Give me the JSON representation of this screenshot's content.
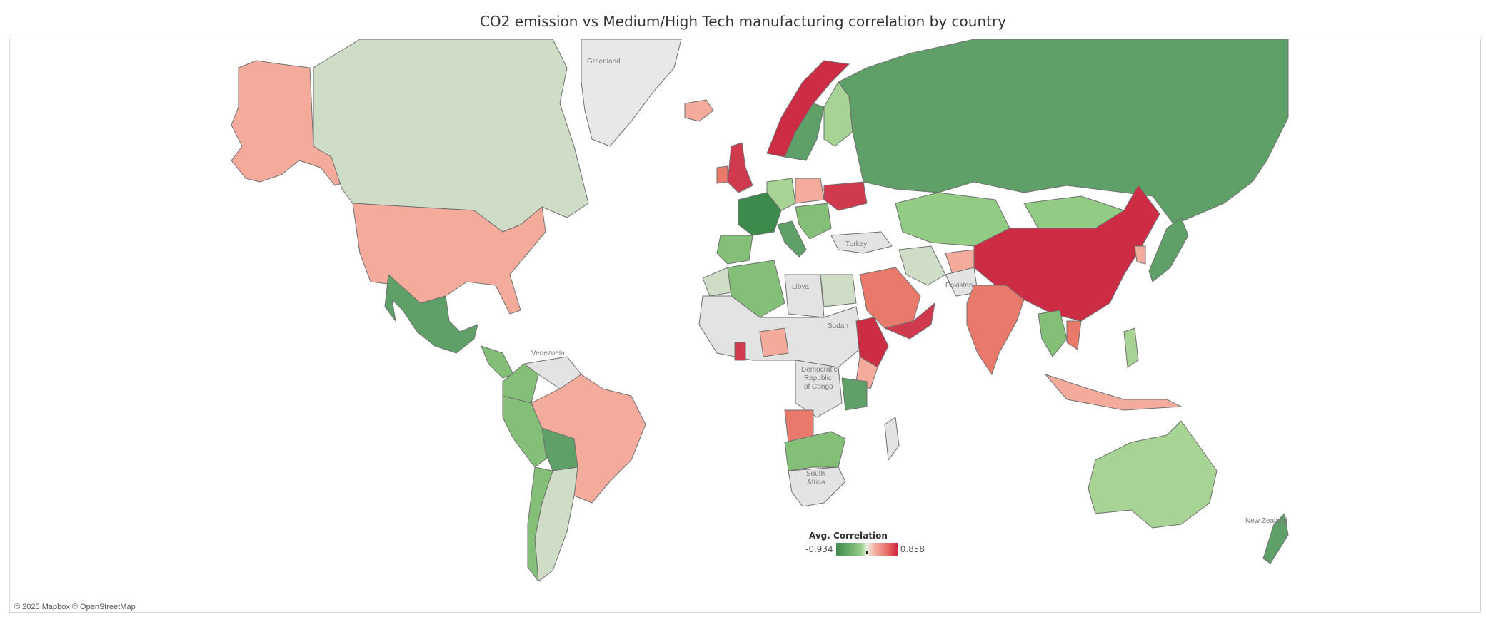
{
  "title": "CO2 emission vs Medium/High Tech manufacturing correlation by country",
  "legend": {
    "title": "Avg. Correlation",
    "min": "-0.934",
    "max": "0.858"
  },
  "attribution": "© 2025 Mapbox © OpenStreetMap",
  "map_labels": {
    "greenland": "Greenland",
    "turkey": "Turkey",
    "libya": "Libya",
    "sudan": "Sudan",
    "pakistan": "Pakistan",
    "venezuela": "Venezuela",
    "drc1": "Democratic",
    "drc2": "Republic",
    "drc3": "of Congo",
    "south_africa1": "South",
    "south_africa2": "Africa",
    "new_zealand": "New Zealand"
  },
  "colors": {
    "no_data": "#e3e3e3",
    "dark_green": "#5f9f68",
    "green": "#84bf78",
    "light_green": "#a7d394",
    "pale_green": "#cfdcc6",
    "salmon": "#f5ab9c",
    "coral": "#e97a6b",
    "red": "#d03a4f",
    "deep_red": "#cd2c45"
  }
}
